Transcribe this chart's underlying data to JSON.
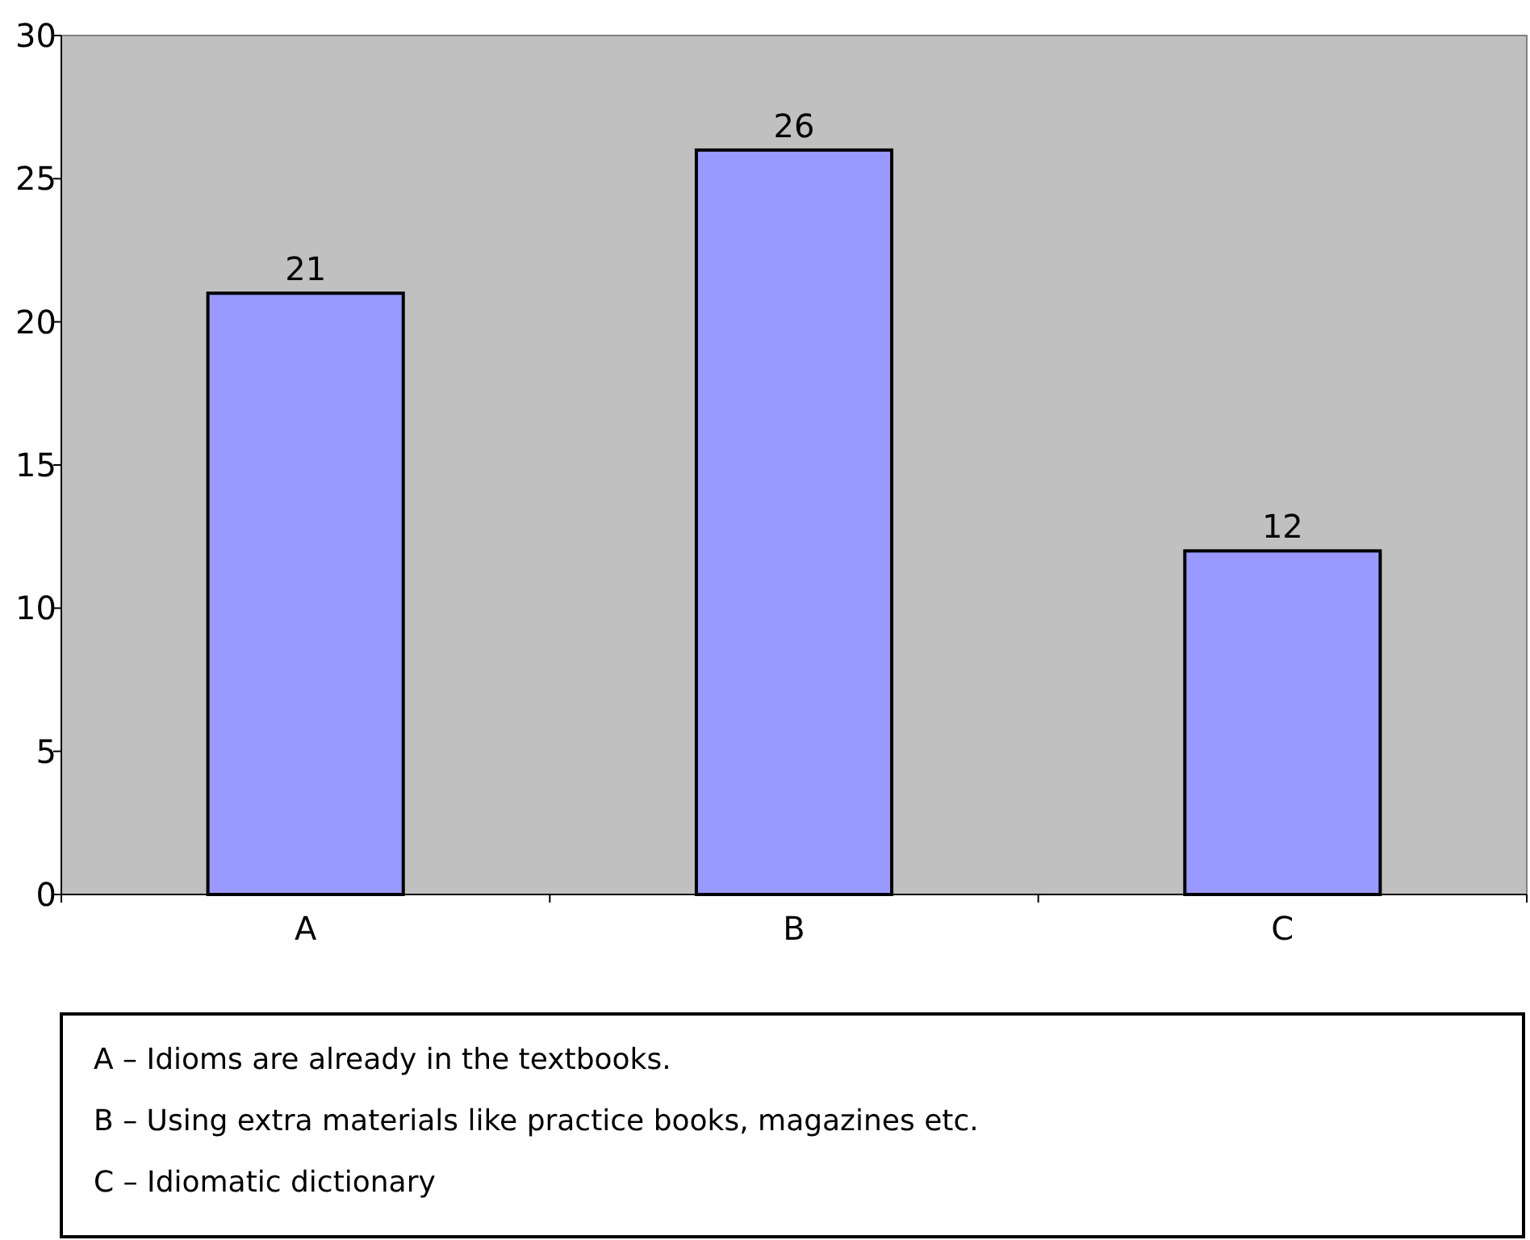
{
  "chart_data": {
    "type": "bar",
    "categories": [
      "A",
      "B",
      "C"
    ],
    "values": [
      21,
      26,
      12
    ],
    "color": "#9999ff",
    "ylim": [
      0,
      30
    ],
    "yticks": [
      0,
      5,
      10,
      15,
      20,
      25,
      30
    ],
    "data_labels": true,
    "annotations": [
      "A – Idioms are already in the textbooks.",
      "B – Using extra materials like practice books, magazines etc.",
      "C – Idiomatic dictionary"
    ]
  }
}
